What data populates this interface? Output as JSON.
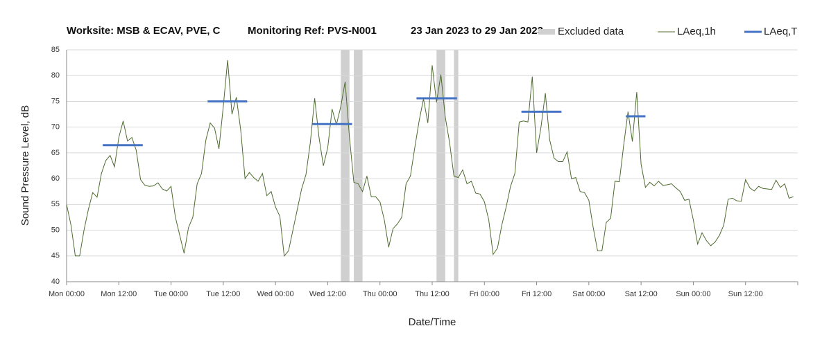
{
  "chart_data": {
    "type": "line",
    "title": "Worksite: MSB & ECAV, PVE, C",
    "subtitle": "Monitoring Ref: PVS-N001",
    "period": "23 Jan 2023 to 29 Jan 2023",
    "x_label": "Date/Time",
    "y_label": "Sound Pressure Level, dB",
    "xlim": [
      0,
      168
    ],
    "ylim": [
      40,
      85
    ],
    "yticks": [
      40,
      45,
      50,
      55,
      60,
      65,
      70,
      75,
      80,
      85
    ],
    "xticks": [
      {
        "value": 0,
        "label": "Mon 00:00"
      },
      {
        "value": 12,
        "label": "Mon 12:00"
      },
      {
        "value": 24,
        "label": "Tue 00:00"
      },
      {
        "value": 36,
        "label": "Tue 12:00"
      },
      {
        "value": 48,
        "label": "Wed 00:00"
      },
      {
        "value": 60,
        "label": "Wed 12:00"
      },
      {
        "value": 72,
        "label": "Thu 00:00"
      },
      {
        "value": 84,
        "label": "Thu 12:00"
      },
      {
        "value": 96,
        "label": "Fri 00:00"
      },
      {
        "value": 108,
        "label": "Fri 12:00"
      },
      {
        "value": 120,
        "label": "Sat 00:00"
      },
      {
        "value": 132,
        "label": "Sat 12:00"
      },
      {
        "value": 144,
        "label": "Sun 00:00"
      },
      {
        "value": 156,
        "label": "Sun 12:00"
      }
    ],
    "grid": true,
    "excluded": {
      "name": "Excluded data",
      "color": "#d0d0d0",
      "ranges": [
        [
          63,
          65
        ],
        [
          66,
          68
        ],
        [
          85,
          87
        ],
        [
          89,
          90
        ]
      ]
    },
    "series": [
      {
        "name": "LAeq,1h",
        "color": "#4e6b2f",
        "values": [
          55,
          51,
          45,
          45,
          50,
          54,
          57.3,
          56.4,
          61,
          63.5,
          64.5,
          62.3,
          68,
          71.2,
          67.3,
          68,
          65.5,
          59.8,
          58.7,
          58.5,
          58.6,
          59.2,
          58,
          57.6,
          58.5,
          52.5,
          49,
          45.5,
          50.5,
          52.5,
          59,
          61,
          67.5,
          70.8,
          69.8,
          65.8,
          74,
          83,
          72.5,
          75.8,
          69.5,
          60,
          61.2,
          60.2,
          59.5,
          61,
          56.7,
          57.5,
          54.5,
          52.7,
          45,
          46,
          50,
          54,
          58,
          60.8,
          67,
          75.6,
          68,
          62.5,
          66,
          73.5,
          70.5,
          74,
          78.8,
          68,
          59.3,
          59,
          57.5,
          60.5,
          56.5,
          56.5,
          55.5,
          52,
          46.7,
          50.3,
          51.2,
          52.5,
          59,
          60.5,
          66,
          71.2,
          75.5,
          70.8,
          82,
          74.8,
          80.2,
          72,
          67,
          60.5,
          60.2,
          61.7,
          59,
          59.5,
          57.2,
          57,
          55.5,
          52,
          45.3,
          46.5,
          51,
          54.5,
          58.5,
          61,
          71,
          71.2,
          71,
          79.8,
          65,
          70,
          76.6,
          67.5,
          64,
          63.3,
          63.3,
          65.2,
          60,
          60.2,
          57.5,
          57.3,
          55.8,
          50.5,
          46,
          46,
          51.5,
          52.3,
          59.5,
          59.4,
          66.5,
          73,
          67.2,
          76.8,
          62.8,
          58.3,
          59.3,
          58.6,
          59.5,
          58.7,
          58.8,
          59,
          58.2,
          57.5,
          55.8,
          56,
          52,
          47.3,
          49.5,
          48,
          47,
          47.7,
          49,
          51,
          56,
          56.2,
          55.7,
          55.6,
          59.8,
          58.2,
          57.6,
          58.5,
          58.1,
          58,
          57.9,
          59.7,
          58.3,
          59,
          56.2,
          56.5
        ]
      },
      {
        "name": "LAeq,T",
        "color": "#4472c4",
        "segments": [
          {
            "x": [
              8.3,
              17.5
            ],
            "value": 66.5
          },
          {
            "x": [
              32.4,
              41.5
            ],
            "value": 75
          },
          {
            "x": [
              56.5,
              65.6
            ],
            "value": 70.6
          },
          {
            "x": [
              80.4,
              89.7
            ],
            "value": 75.6
          },
          {
            "x": [
              104.5,
              113.7
            ],
            "value": 73
          },
          {
            "x": [
              128.5,
              133
            ],
            "value": 72.1
          }
        ]
      }
    ]
  }
}
